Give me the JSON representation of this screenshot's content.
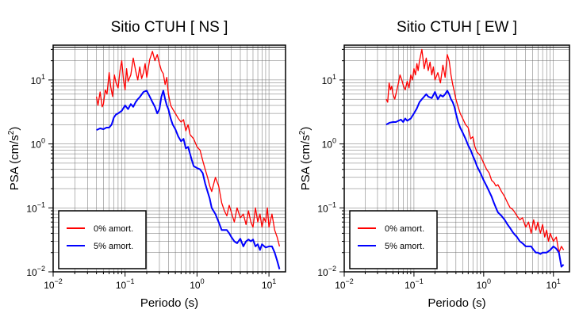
{
  "chart_data": [
    {
      "type": "line",
      "title": "Sitio CTUH [ NS ]",
      "xlabel": "Periodo (s)",
      "ylabel": "PSA (cm/s²)",
      "ylabel_main": "PSA (cm/s",
      "ylabel_sup": "2",
      "ylabel_close": ")",
      "xscale": "log",
      "yscale": "log",
      "xlim": [
        0.01,
        17
      ],
      "ylim": [
        0.01,
        35
      ],
      "grid": true,
      "legend_position": "bottom-left",
      "x_tick_labels": [
        {
          "value": 0.01,
          "base": "10",
          "exp": "−2"
        },
        {
          "value": 0.1,
          "base": "10",
          "exp": "−1"
        },
        {
          "value": 1,
          "base": "10",
          "exp": "0"
        },
        {
          "value": 10,
          "base": "10",
          "exp": "1"
        }
      ],
      "y_tick_labels": [
        {
          "value": 0.01,
          "base": "10",
          "exp": "−2"
        },
        {
          "value": 0.1,
          "base": "10",
          "exp": "−1"
        },
        {
          "value": 1,
          "base": "10",
          "exp": "0"
        },
        {
          "value": 10,
          "base": "10",
          "exp": "1"
        }
      ],
      "series": [
        {
          "name": "0% amort.",
          "color": "#ff0000",
          "x": [
            0.04,
            0.042,
            0.045,
            0.048,
            0.05,
            0.053,
            0.056,
            0.06,
            0.063,
            0.067,
            0.071,
            0.075,
            0.08,
            0.085,
            0.09,
            0.095,
            0.1,
            0.105,
            0.11,
            0.12,
            0.13,
            0.14,
            0.15,
            0.16,
            0.17,
            0.18,
            0.19,
            0.2,
            0.21,
            0.22,
            0.24,
            0.26,
            0.28,
            0.3,
            0.32,
            0.34,
            0.36,
            0.38,
            0.4,
            0.43,
            0.46,
            0.5,
            0.55,
            0.6,
            0.65,
            0.7,
            0.75,
            0.8,
            0.9,
            1.0,
            1.1,
            1.2,
            1.3,
            1.4,
            1.5,
            1.6,
            1.8,
            2.0,
            2.2,
            2.4,
            2.6,
            2.8,
            3.0,
            3.3,
            3.6,
            4.0,
            4.4,
            4.8,
            5.2,
            5.6,
            6.0,
            6.5,
            7.0,
            7.5,
            8.0,
            8.5,
            9.0,
            9.5,
            10,
            11,
            12,
            13,
            14
          ],
          "y": [
            5.5,
            4.0,
            6.5,
            3.8,
            4.2,
            7.0,
            6.0,
            13.0,
            8.0,
            5.5,
            12.0,
            9.0,
            7.5,
            14.0,
            20.0,
            10.0,
            7.0,
            15.0,
            9.5,
            12.0,
            22.0,
            14.0,
            10.0,
            16.0,
            10.5,
            13.0,
            18.0,
            11.0,
            15.0,
            21.0,
            28.0,
            20.0,
            25.0,
            18.0,
            14.0,
            12.5,
            8.5,
            11.0,
            6.0,
            4.0,
            3.5,
            3.0,
            2.5,
            2.2,
            2.4,
            1.6,
            2.0,
            1.4,
            1.2,
            0.9,
            0.8,
            0.55,
            0.4,
            0.3,
            0.22,
            0.18,
            0.3,
            0.22,
            0.12,
            0.09,
            0.075,
            0.11,
            0.085,
            0.06,
            0.1,
            0.07,
            0.08,
            0.055,
            0.09,
            0.06,
            0.05,
            0.1,
            0.06,
            0.08,
            0.05,
            0.07,
            0.06,
            0.1,
            0.05,
            0.08,
            0.045,
            0.035,
            0.025
          ]
        },
        {
          "name": "5% amort.",
          "color": "#0000ff",
          "x": [
            0.04,
            0.045,
            0.05,
            0.055,
            0.06,
            0.065,
            0.07,
            0.075,
            0.08,
            0.09,
            0.1,
            0.11,
            0.12,
            0.13,
            0.14,
            0.15,
            0.16,
            0.18,
            0.2,
            0.22,
            0.24,
            0.26,
            0.28,
            0.3,
            0.32,
            0.34,
            0.36,
            0.38,
            0.4,
            0.43,
            0.46,
            0.5,
            0.55,
            0.6,
            0.65,
            0.7,
            0.75,
            0.8,
            0.85,
            0.9,
            1.0,
            1.1,
            1.2,
            1.3,
            1.4,
            1.5,
            1.6,
            1.8,
            2.0,
            2.2,
            2.4,
            2.6,
            2.8,
            3.0,
            3.3,
            3.6,
            4.0,
            4.4,
            4.8,
            5.2,
            5.6,
            6.0,
            6.5,
            7.0,
            7.5,
            8.0,
            9.0,
            10,
            11,
            12,
            13,
            14
          ],
          "y": [
            1.65,
            1.75,
            1.7,
            1.8,
            1.8,
            2.0,
            2.6,
            2.9,
            3.0,
            3.3,
            4.0,
            3.5,
            4.2,
            3.8,
            4.5,
            5.0,
            5.4,
            6.5,
            6.8,
            5.5,
            4.5,
            3.8,
            3.0,
            3.5,
            5.5,
            6.8,
            5.0,
            4.0,
            3.5,
            2.5,
            2.0,
            1.7,
            1.3,
            1.1,
            1.2,
            0.85,
            0.9,
            0.7,
            0.55,
            0.45,
            0.42,
            0.4,
            0.35,
            0.24,
            0.18,
            0.14,
            0.1,
            0.08,
            0.06,
            0.045,
            0.045,
            0.045,
            0.04,
            0.035,
            0.03,
            0.028,
            0.033,
            0.025,
            0.03,
            0.032,
            0.03,
            0.032,
            0.025,
            0.027,
            0.022,
            0.027,
            0.024,
            0.025,
            0.025,
            0.02,
            0.015,
            0.011
          ]
        }
      ]
    },
    {
      "type": "line",
      "title": "Sitio CTUH [ EW ]",
      "xlabel": "Periodo (s)",
      "ylabel": "PSA (cm/s²)",
      "ylabel_main": "PSA (cm/s",
      "ylabel_sup": "2",
      "ylabel_close": ")",
      "xscale": "log",
      "yscale": "log",
      "xlim": [
        0.01,
        17
      ],
      "ylim": [
        0.01,
        35
      ],
      "grid": true,
      "legend_position": "bottom-left",
      "x_tick_labels": [
        {
          "value": 0.01,
          "base": "10",
          "exp": "−2"
        },
        {
          "value": 0.1,
          "base": "10",
          "exp": "−1"
        },
        {
          "value": 1,
          "base": "10",
          "exp": "0"
        },
        {
          "value": 10,
          "base": "10",
          "exp": "1"
        }
      ],
      "y_tick_labels": [
        {
          "value": 0.01,
          "base": "10",
          "exp": "−2"
        },
        {
          "value": 0.1,
          "base": "10",
          "exp": "−1"
        },
        {
          "value": 1,
          "base": "10",
          "exp": "0"
        },
        {
          "value": 10,
          "base": "10",
          "exp": "1"
        }
      ],
      "series": [
        {
          "name": "0% amort.",
          "color": "#ff0000",
          "x": [
            0.04,
            0.042,
            0.044,
            0.046,
            0.048,
            0.05,
            0.053,
            0.056,
            0.06,
            0.063,
            0.067,
            0.071,
            0.075,
            0.08,
            0.085,
            0.09,
            0.095,
            0.1,
            0.105,
            0.11,
            0.115,
            0.12,
            0.13,
            0.14,
            0.15,
            0.16,
            0.17,
            0.18,
            0.19,
            0.2,
            0.22,
            0.24,
            0.26,
            0.28,
            0.3,
            0.32,
            0.34,
            0.36,
            0.38,
            0.4,
            0.43,
            0.46,
            0.5,
            0.55,
            0.6,
            0.65,
            0.7,
            0.75,
            0.8,
            0.9,
            1.0,
            1.1,
            1.2,
            1.3,
            1.4,
            1.5,
            1.6,
            1.8,
            2.0,
            2.2,
            2.4,
            2.6,
            2.8,
            3.0,
            3.3,
            3.6,
            4.0,
            4.4,
            4.8,
            5.2,
            5.6,
            6.0,
            6.5,
            7.0,
            7.5,
            8.0,
            8.5,
            9.0,
            10,
            11,
            12,
            13,
            14
          ],
          "y": [
            5.0,
            4.5,
            9.0,
            7.0,
            8.0,
            6.0,
            5.0,
            6.5,
            9.0,
            12.0,
            10.0,
            8.0,
            7.0,
            9.5,
            7.5,
            12.0,
            10.0,
            15.0,
            12.0,
            18.0,
            14.0,
            20.0,
            30.0,
            15.0,
            22.0,
            14.0,
            19.0,
            12.0,
            16.0,
            10.0,
            13.0,
            9.0,
            17.0,
            11.0,
            25.0,
            20.0,
            12.0,
            8.5,
            6.5,
            5.0,
            3.8,
            3.0,
            2.5,
            2.0,
            1.8,
            1.2,
            1.3,
            0.9,
            0.75,
            0.65,
            0.5,
            0.4,
            0.35,
            0.27,
            0.25,
            0.22,
            0.23,
            0.18,
            0.15,
            0.12,
            0.1,
            0.095,
            0.085,
            0.075,
            0.065,
            0.07,
            0.05,
            0.06,
            0.04,
            0.065,
            0.045,
            0.06,
            0.04,
            0.055,
            0.035,
            0.045,
            0.03,
            0.04,
            0.03,
            0.035,
            0.02,
            0.025,
            0.022
          ]
        },
        {
          "name": "5% amort.",
          "color": "#0000ff",
          "x": [
            0.04,
            0.045,
            0.05,
            0.055,
            0.06,
            0.065,
            0.07,
            0.075,
            0.08,
            0.09,
            0.1,
            0.11,
            0.12,
            0.13,
            0.14,
            0.15,
            0.16,
            0.18,
            0.2,
            0.22,
            0.24,
            0.26,
            0.28,
            0.3,
            0.32,
            0.34,
            0.36,
            0.38,
            0.4,
            0.43,
            0.46,
            0.5,
            0.55,
            0.6,
            0.65,
            0.7,
            0.75,
            0.8,
            0.9,
            1.0,
            1.1,
            1.2,
            1.3,
            1.4,
            1.5,
            1.6,
            1.8,
            2.0,
            2.2,
            2.4,
            2.6,
            2.8,
            3.0,
            3.3,
            3.6,
            4.0,
            4.4,
            4.8,
            5.2,
            5.6,
            6.0,
            6.5,
            7.0,
            7.5,
            8.0,
            9.0,
            10,
            11,
            12,
            13,
            14
          ],
          "y": [
            2.0,
            2.15,
            2.2,
            2.2,
            2.3,
            2.4,
            2.2,
            2.5,
            2.3,
            2.5,
            3.0,
            3.6,
            4.5,
            5.0,
            5.5,
            6.0,
            5.5,
            5.2,
            6.5,
            5.0,
            5.8,
            5.5,
            6.0,
            6.8,
            6.0,
            5.0,
            4.5,
            3.8,
            3.0,
            2.2,
            1.8,
            1.5,
            1.2,
            0.95,
            0.8,
            0.65,
            0.55,
            0.45,
            0.35,
            0.27,
            0.22,
            0.18,
            0.15,
            0.12,
            0.1,
            0.085,
            0.075,
            0.065,
            0.055,
            0.048,
            0.042,
            0.038,
            0.035,
            0.03,
            0.028,
            0.025,
            0.025,
            0.025,
            0.022,
            0.02,
            0.02,
            0.019,
            0.02,
            0.02,
            0.02,
            0.022,
            0.025,
            0.023,
            0.02,
            0.012,
            0.013
          ]
        }
      ]
    }
  ]
}
